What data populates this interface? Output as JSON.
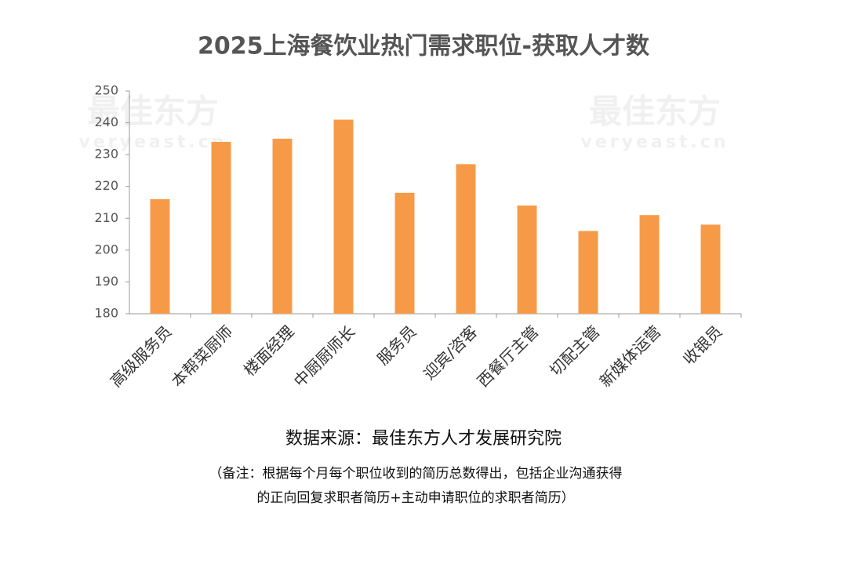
{
  "chart_data": {
    "type": "bar",
    "title": "2025上海餐饮业热门需求职位-获取人才数",
    "categories": [
      "高级服务员",
      "本帮菜厨师",
      "楼面经理",
      "中厨厨师长",
      "服务员",
      "迎宾/咨客",
      "西餐厅主管",
      "切配主管",
      "新媒体运营",
      "收银员"
    ],
    "values": [
      216,
      234,
      235,
      241,
      218,
      227,
      214,
      206,
      211,
      208
    ],
    "color": "#f79a48",
    "ylim": [
      180,
      250
    ],
    "yticks": [
      180,
      190,
      200,
      210,
      220,
      230,
      240,
      250
    ],
    "grid": false,
    "source": "数据来源：最佳东方人才发展研究院",
    "note": [
      "（备注：根据每个月每个职位收到的简历总数得出，包括企业沟通获得",
      "的正向回复求职者简历+主动申请职位的求职者简历）"
    ],
    "watermark": {
      "name": "最佳东方",
      "url": "veryeast.cn"
    }
  }
}
